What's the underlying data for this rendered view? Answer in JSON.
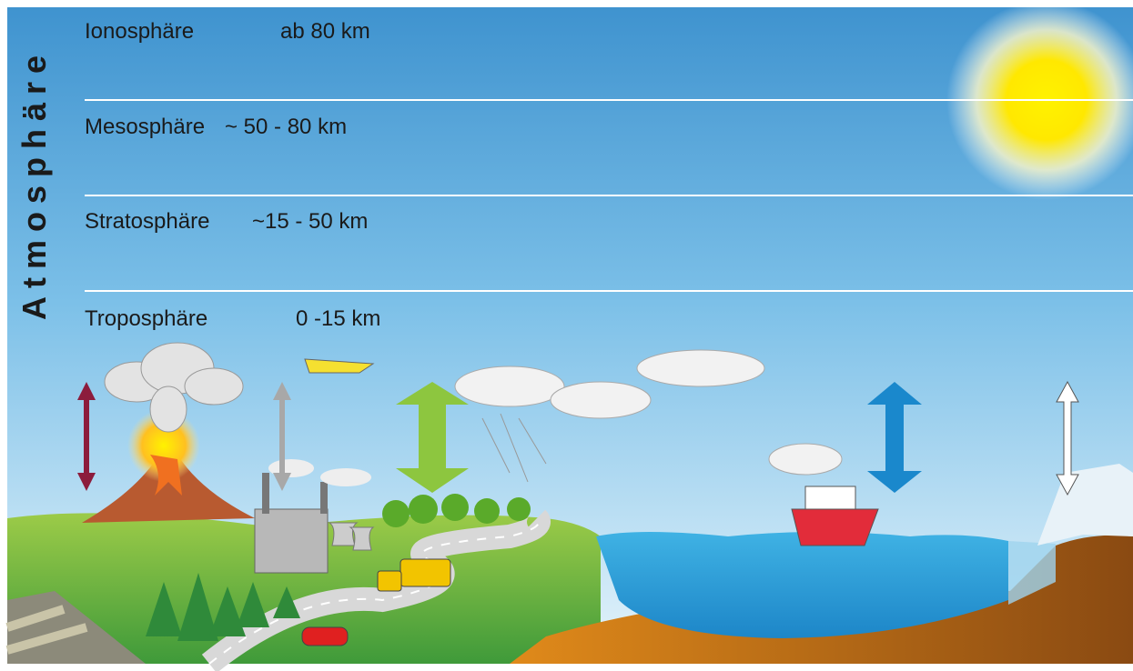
{
  "title": "Atmosphäre",
  "layers": [
    {
      "name": "Ionosphäre",
      "range": "ab 80 km"
    },
    {
      "name": "Mesosphäre",
      "range": "~ 50 - 80 km"
    },
    {
      "name": "Stratosphäre",
      "range": "~15 - 50 km"
    },
    {
      "name": "Troposphäre",
      "range": "0 -15 km"
    }
  ]
}
